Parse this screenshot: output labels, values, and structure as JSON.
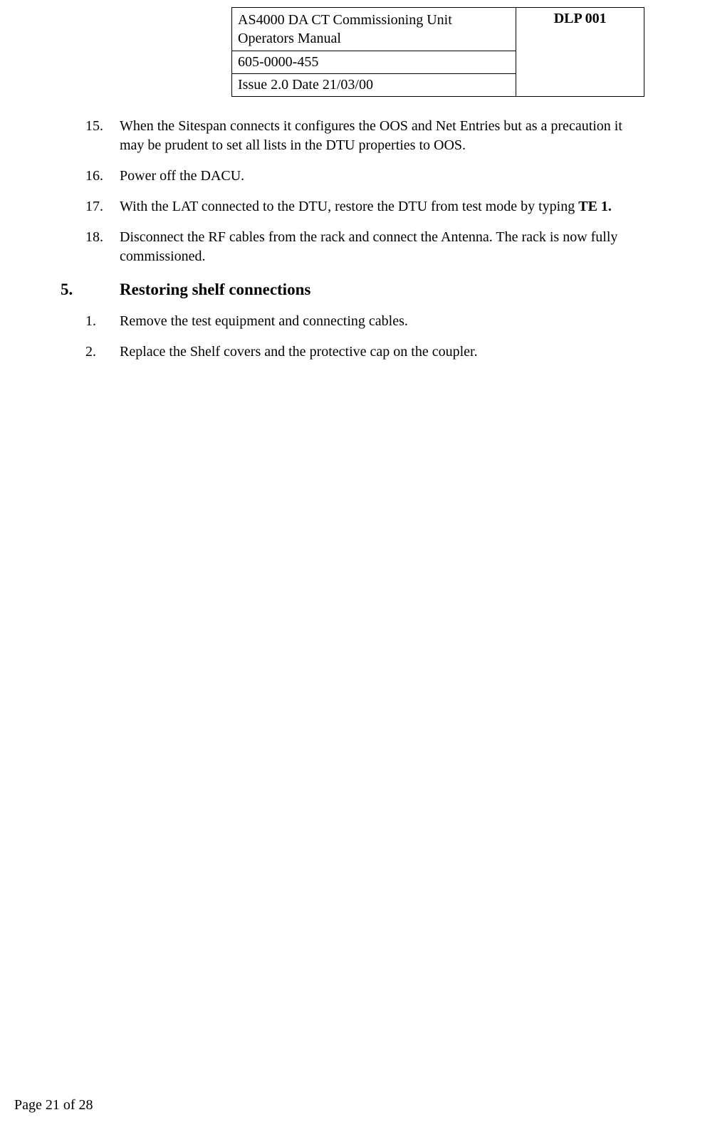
{
  "header": {
    "title_line1": "AS4000 DA CT Commissioning Unit",
    "title_line2": "Operators Manual",
    "doc_number": "605-0000-455",
    "issue_date": "Issue 2.0  Date 21/03/00",
    "dlp": "DLP 001"
  },
  "items_a": [
    {
      "num": "15.",
      "text": "When the Sitespan connects it configures the OOS and Net Entries but as a precaution it may be prudent to set all lists in the DTU properties to OOS."
    },
    {
      "num": "16.",
      "text": "Power off the DACU."
    },
    {
      "num": "17.",
      "text_prefix": "With the LAT connected to the DTU, restore the DTU from test mode by typing ",
      "text_bold": "TE 1."
    },
    {
      "num": "18.",
      "text": "Disconnect the RF cables from the rack and connect the Antenna. The rack is now fully commissioned."
    }
  ],
  "section": {
    "num": "5.",
    "title": "Restoring shelf connections"
  },
  "items_b": [
    {
      "num": "1.",
      "text": "Remove the test equipment and connecting cables."
    },
    {
      "num": "2.",
      "text": "Replace the Shelf covers and the protective cap on the coupler."
    }
  ],
  "footer": "Page 21 of 28"
}
